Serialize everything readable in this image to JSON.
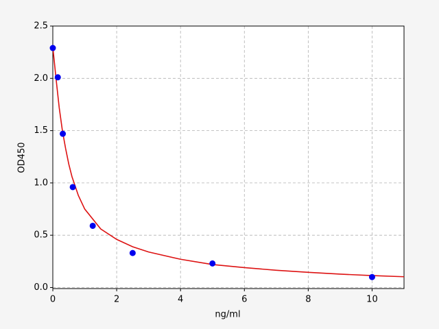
{
  "chart_data": {
    "type": "scatter",
    "xlabel": "ng/ml",
    "ylabel": "OD450",
    "xlim": [
      0,
      11
    ],
    "ylim": [
      -0.01,
      2.5
    ],
    "xticks": [
      0,
      2,
      4,
      6,
      8,
      10
    ],
    "yticks": [
      {
        "value": 0,
        "label": "0.0"
      },
      {
        "value": 0.5,
        "label": "0.5"
      },
      {
        "value": 1,
        "label": "1.0"
      },
      {
        "value": 1.5,
        "label": "1.5"
      },
      {
        "value": 2,
        "label": "2.0"
      },
      {
        "value": 2.5,
        "label": "2.5"
      }
    ],
    "grid": true,
    "series": [
      {
        "mode": "line",
        "color": "#dd1111",
        "x": [
          0,
          0.1,
          0.2,
          0.3,
          0.4,
          0.5,
          0.6,
          0.8,
          1.0,
          1.5,
          2,
          2.5,
          3,
          4,
          5,
          6,
          7,
          8,
          9,
          10,
          11
        ],
        "values": [
          2.3,
          2.0,
          1.72,
          1.5,
          1.33,
          1.18,
          1.06,
          0.88,
          0.75,
          0.56,
          0.46,
          0.39,
          0.34,
          0.27,
          0.22,
          0.19,
          0.165,
          0.145,
          0.128,
          0.114,
          0.103
        ]
      },
      {
        "mode": "markers",
        "color": "#0000ee",
        "x": [
          0,
          0.156,
          0.3125,
          0.625,
          1.25,
          2.5,
          5,
          10
        ],
        "values": [
          2.29,
          2.01,
          1.47,
          0.96,
          0.59,
          0.33,
          0.23,
          0.1
        ]
      }
    ]
  }
}
